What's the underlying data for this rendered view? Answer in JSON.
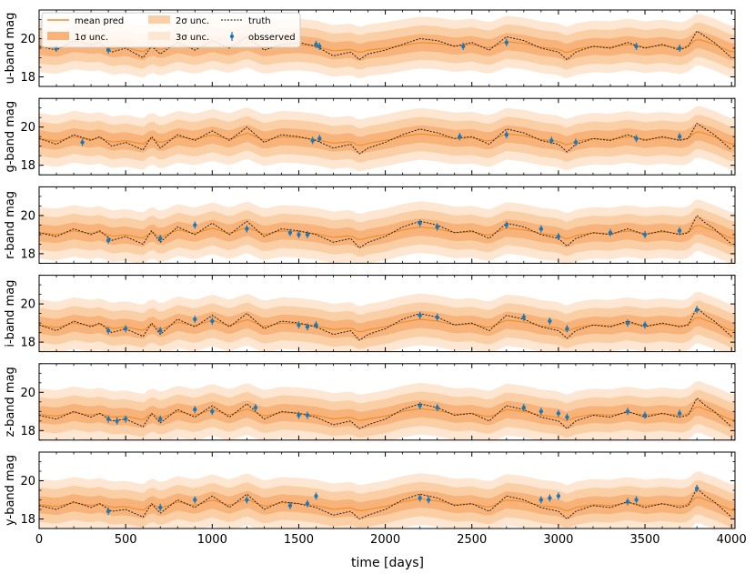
{
  "figure": {
    "xlabel": "time [days]",
    "colors": {
      "mean": "#f28e2b",
      "band1": "#f7b37a",
      "band2": "#fbcfa6",
      "band3": "#fde6d2",
      "truth": "#111111",
      "observed": "#1f77b4"
    },
    "legend": {
      "placement": "top-left",
      "items": [
        {
          "key": "mean",
          "label": "mean pred"
        },
        {
          "key": "band1",
          "label": "1σ unc."
        },
        {
          "key": "band2",
          "label": "2σ unc."
        },
        {
          "key": "band3",
          "label": "3σ unc."
        },
        {
          "key": "truth",
          "label": "truth"
        },
        {
          "key": "observed",
          "label": "obsserved"
        }
      ]
    }
  },
  "chart_data": [
    {
      "type": "line",
      "panel": "u",
      "ylabel": "u-band mag",
      "xlim": [
        0,
        4020
      ],
      "ylim": [
        21.5,
        17.5
      ],
      "y_inverted": true,
      "xticks": [
        0,
        500,
        1000,
        1500,
        2000,
        2500,
        3000,
        3500,
        4000
      ],
      "yticks": [
        18,
        20
      ],
      "mean_level": 19.6,
      "sigma": 0.45,
      "band_multipliers": [
        1,
        2,
        3
      ],
      "truth_x": [
        0,
        100,
        200,
        300,
        350,
        420,
        500,
        600,
        650,
        700,
        800,
        900,
        1000,
        1100,
        1200,
        1300,
        1400,
        1500,
        1600,
        1700,
        1800,
        1850,
        1900,
        2000,
        2100,
        2200,
        2300,
        2400,
        2500,
        2600,
        2700,
        2800,
        2900,
        3000,
        3050,
        3100,
        3200,
        3300,
        3400,
        3500,
        3600,
        3700,
        3750,
        3800,
        3850,
        3900,
        4000
      ],
      "truth_y": [
        19.6,
        19.4,
        19.9,
        19.7,
        19.8,
        19.3,
        19.5,
        19.0,
        19.6,
        19.2,
        19.8,
        19.4,
        19.9,
        19.5,
        20.1,
        19.4,
        19.7,
        19.8,
        19.6,
        19.1,
        19.3,
        18.9,
        19.2,
        19.4,
        19.7,
        20.0,
        19.9,
        19.6,
        19.8,
        19.4,
        20.1,
        19.9,
        19.5,
        19.3,
        18.9,
        19.3,
        19.6,
        19.5,
        19.8,
        19.5,
        19.7,
        19.4,
        19.6,
        20.4,
        20.1,
        19.8,
        19.0
      ],
      "observed_x": [
        100,
        400,
        1600,
        1620,
        2450,
        2700,
        3450,
        3700
      ],
      "observed_y": [
        19.5,
        19.4,
        19.7,
        19.6,
        19.6,
        19.8,
        19.6,
        19.5
      ]
    },
    {
      "type": "line",
      "panel": "g",
      "ylabel": "g-band mag",
      "xlim": [
        0,
        4020
      ],
      "ylim": [
        21.5,
        17.5
      ],
      "y_inverted": true,
      "xticks": [
        0,
        500,
        1000,
        1500,
        2000,
        2500,
        3000,
        3500,
        4000
      ],
      "yticks": [
        18,
        20
      ],
      "mean_level": 19.4,
      "sigma": 0.45,
      "band_multipliers": [
        1,
        2,
        3
      ],
      "truth_x": [
        0,
        100,
        200,
        300,
        350,
        420,
        500,
        600,
        650,
        700,
        800,
        900,
        1000,
        1100,
        1200,
        1300,
        1400,
        1500,
        1600,
        1700,
        1800,
        1850,
        1900,
        2000,
        2100,
        2200,
        2300,
        2400,
        2500,
        2600,
        2700,
        2800,
        2900,
        3000,
        3050,
        3100,
        3200,
        3300,
        3400,
        3500,
        3600,
        3700,
        3750,
        3800,
        3850,
        3900,
        4000
      ],
      "truth_y": [
        19.4,
        19.1,
        19.6,
        19.3,
        19.5,
        19.0,
        19.2,
        18.8,
        19.5,
        18.9,
        19.6,
        19.3,
        19.8,
        19.3,
        20.0,
        19.2,
        19.6,
        19.5,
        19.3,
        18.9,
        19.1,
        18.6,
        18.9,
        19.2,
        19.6,
        19.9,
        19.7,
        19.4,
        19.5,
        19.1,
        19.9,
        19.7,
        19.3,
        19.1,
        18.7,
        19.1,
        19.4,
        19.3,
        19.6,
        19.3,
        19.5,
        19.3,
        19.4,
        20.2,
        19.9,
        19.6,
        18.8
      ],
      "observed_x": [
        250,
        1580,
        1620,
        2430,
        2700,
        2960,
        3100,
        3450,
        3700
      ],
      "observed_y": [
        19.2,
        19.3,
        19.4,
        19.5,
        19.6,
        19.3,
        19.2,
        19.4,
        19.5
      ]
    },
    {
      "type": "line",
      "panel": "r",
      "ylabel": "r-band mag",
      "xlim": [
        0,
        4020
      ],
      "ylim": [
        21.5,
        17.5
      ],
      "y_inverted": true,
      "xticks": [
        0,
        500,
        1000,
        1500,
        2000,
        2500,
        3000,
        3500,
        4000
      ],
      "yticks": [
        18,
        20
      ],
      "mean_level": 19.1,
      "sigma": 0.45,
      "band_multipliers": [
        1,
        2,
        3
      ],
      "truth_x": [
        0,
        100,
        200,
        300,
        350,
        420,
        500,
        600,
        650,
        700,
        800,
        900,
        1000,
        1100,
        1200,
        1300,
        1400,
        1500,
        1600,
        1700,
        1800,
        1850,
        1900,
        2000,
        2100,
        2200,
        2300,
        2400,
        2500,
        2600,
        2700,
        2800,
        2900,
        3000,
        3050,
        3100,
        3200,
        3300,
        3400,
        3500,
        3600,
        3700,
        3750,
        3800,
        3850,
        3900,
        4000
      ],
      "truth_y": [
        19.1,
        18.9,
        19.3,
        19.0,
        19.2,
        18.7,
        18.9,
        18.5,
        19.2,
        18.6,
        19.4,
        19.0,
        19.6,
        19.0,
        19.7,
        18.9,
        19.3,
        19.2,
        19.0,
        18.6,
        18.8,
        18.3,
        18.6,
        18.9,
        19.4,
        19.7,
        19.5,
        19.1,
        19.2,
        18.8,
        19.6,
        19.4,
        19.0,
        18.8,
        18.4,
        18.8,
        19.1,
        19.0,
        19.3,
        19.0,
        19.2,
        19.0,
        19.1,
        20.0,
        19.6,
        19.3,
        18.5
      ],
      "observed_x": [
        400,
        700,
        900,
        1200,
        1450,
        1500,
        1550,
        2200,
        2300,
        2700,
        2900,
        3000,
        3300,
        3500,
        3700
      ],
      "observed_y": [
        18.7,
        18.8,
        19.5,
        19.3,
        19.1,
        19.0,
        19.0,
        19.6,
        19.4,
        19.5,
        19.3,
        18.9,
        19.1,
        19.0,
        19.2
      ]
    },
    {
      "type": "line",
      "panel": "i",
      "ylabel": "i-band mag",
      "xlim": [
        0,
        4020
      ],
      "ylim": [
        21.5,
        17.5
      ],
      "y_inverted": true,
      "xticks": [
        0,
        500,
        1000,
        1500,
        2000,
        2500,
        3000,
        3500,
        4000
      ],
      "yticks": [
        18,
        20
      ],
      "mean_level": 18.9,
      "sigma": 0.45,
      "band_multipliers": [
        1,
        2,
        3
      ],
      "truth_x": [
        0,
        100,
        200,
        300,
        350,
        420,
        500,
        600,
        650,
        700,
        800,
        900,
        1000,
        1100,
        1200,
        1300,
        1400,
        1500,
        1600,
        1700,
        1800,
        1850,
        1900,
        2000,
        2100,
        2200,
        2300,
        2400,
        2500,
        2600,
        2700,
        2800,
        2900,
        3000,
        3050,
        3100,
        3200,
        3300,
        3400,
        3500,
        3600,
        3700,
        3750,
        3800,
        3850,
        3900,
        4000
      ],
      "truth_y": [
        18.9,
        18.6,
        19.1,
        18.8,
        19.0,
        18.5,
        18.7,
        18.3,
        19.0,
        18.4,
        19.2,
        18.8,
        19.4,
        18.8,
        19.5,
        18.7,
        19.1,
        19.0,
        18.8,
        18.4,
        18.6,
        18.1,
        18.4,
        18.7,
        19.2,
        19.5,
        19.3,
        18.9,
        19.0,
        18.6,
        19.4,
        19.2,
        18.8,
        18.6,
        18.2,
        18.6,
        18.9,
        18.8,
        19.1,
        18.8,
        19.0,
        18.8,
        18.9,
        19.8,
        19.4,
        19.1,
        18.3
      ],
      "observed_x": [
        400,
        500,
        700,
        900,
        1000,
        1500,
        1550,
        1600,
        2200,
        2300,
        2800,
        2950,
        3050,
        3400,
        3500,
        3800
      ],
      "observed_y": [
        18.6,
        18.7,
        18.6,
        19.2,
        19.1,
        18.9,
        18.8,
        18.9,
        19.4,
        19.3,
        19.3,
        19.1,
        18.7,
        19.0,
        18.9,
        19.7
      ]
    },
    {
      "type": "line",
      "panel": "z",
      "ylabel": "z-band mag",
      "xlim": [
        0,
        4020
      ],
      "ylim": [
        21.5,
        17.5
      ],
      "y_inverted": true,
      "xticks": [
        0,
        500,
        1000,
        1500,
        2000,
        2500,
        3000,
        3500,
        4000
      ],
      "yticks": [
        18,
        20
      ],
      "mean_level": 18.9,
      "sigma": 0.45,
      "band_multipliers": [
        1,
        2,
        3
      ],
      "truth_x": [
        0,
        100,
        200,
        300,
        350,
        420,
        500,
        600,
        650,
        700,
        800,
        900,
        1000,
        1100,
        1200,
        1300,
        1400,
        1500,
        1600,
        1700,
        1800,
        1850,
        1900,
        2000,
        2100,
        2200,
        2300,
        2400,
        2500,
        2600,
        2700,
        2800,
        2900,
        3000,
        3050,
        3100,
        3200,
        3300,
        3400,
        3500,
        3600,
        3700,
        3750,
        3800,
        3850,
        3900,
        4000
      ],
      "truth_y": [
        18.8,
        18.6,
        19.0,
        18.7,
        18.9,
        18.5,
        18.6,
        18.2,
        18.9,
        18.4,
        19.1,
        18.7,
        19.3,
        18.7,
        19.4,
        18.6,
        19.0,
        18.9,
        18.7,
        18.3,
        18.5,
        18.1,
        18.3,
        18.6,
        19.1,
        19.4,
        19.2,
        18.8,
        18.9,
        18.5,
        19.3,
        19.1,
        18.7,
        18.5,
        18.1,
        18.5,
        18.8,
        18.7,
        19.0,
        18.7,
        18.9,
        18.7,
        18.8,
        19.7,
        19.3,
        19.0,
        18.2
      ],
      "observed_x": [
        400,
        450,
        500,
        700,
        900,
        1000,
        1250,
        1500,
        1550,
        2200,
        2300,
        2800,
        2900,
        3000,
        3050,
        3400,
        3500,
        3700
      ],
      "observed_y": [
        18.6,
        18.5,
        18.6,
        18.6,
        19.1,
        19.0,
        19.2,
        18.8,
        18.8,
        19.3,
        19.2,
        19.2,
        19.0,
        18.9,
        18.7,
        19.0,
        18.8,
        18.9
      ]
    },
    {
      "type": "line",
      "panel": "y",
      "ylabel": "y-band mag",
      "xlim": [
        0,
        4020
      ],
      "ylim": [
        21.5,
        17.5
      ],
      "y_inverted": true,
      "xticks": [
        0,
        500,
        1000,
        1500,
        2000,
        2500,
        3000,
        3500,
        4000
      ],
      "yticks": [
        18,
        20
      ],
      "mean_level": 18.8,
      "sigma": 0.45,
      "band_multipliers": [
        1,
        2,
        3
      ],
      "truth_x": [
        0,
        100,
        200,
        300,
        350,
        420,
        500,
        600,
        650,
        700,
        800,
        900,
        1000,
        1100,
        1200,
        1300,
        1400,
        1500,
        1600,
        1700,
        1800,
        1850,
        1900,
        2000,
        2100,
        2200,
        2300,
        2400,
        2500,
        2600,
        2700,
        2800,
        2900,
        3000,
        3050,
        3100,
        3200,
        3300,
        3400,
        3500,
        3600,
        3700,
        3750,
        3800,
        3850,
        3900,
        4000
      ],
      "truth_y": [
        18.7,
        18.5,
        18.9,
        18.6,
        18.8,
        18.4,
        18.5,
        18.1,
        18.8,
        18.3,
        19.0,
        18.6,
        19.2,
        18.6,
        19.3,
        18.5,
        18.9,
        18.8,
        18.6,
        18.2,
        18.4,
        18.0,
        18.2,
        18.5,
        19.0,
        19.3,
        19.1,
        18.7,
        18.8,
        18.4,
        19.2,
        19.0,
        18.6,
        18.4,
        18.0,
        18.4,
        18.7,
        18.6,
        18.9,
        18.6,
        18.8,
        18.6,
        18.7,
        19.6,
        19.2,
        18.9,
        18.1
      ],
      "observed_x": [
        400,
        700,
        900,
        1200,
        1450,
        1550,
        1600,
        2200,
        2250,
        2900,
        2950,
        3000,
        3400,
        3450,
        3800
      ],
      "observed_y": [
        18.4,
        18.6,
        19.0,
        19.0,
        18.7,
        18.8,
        19.2,
        19.1,
        19.0,
        19.0,
        19.1,
        19.2,
        18.9,
        19.0,
        19.6
      ]
    }
  ]
}
